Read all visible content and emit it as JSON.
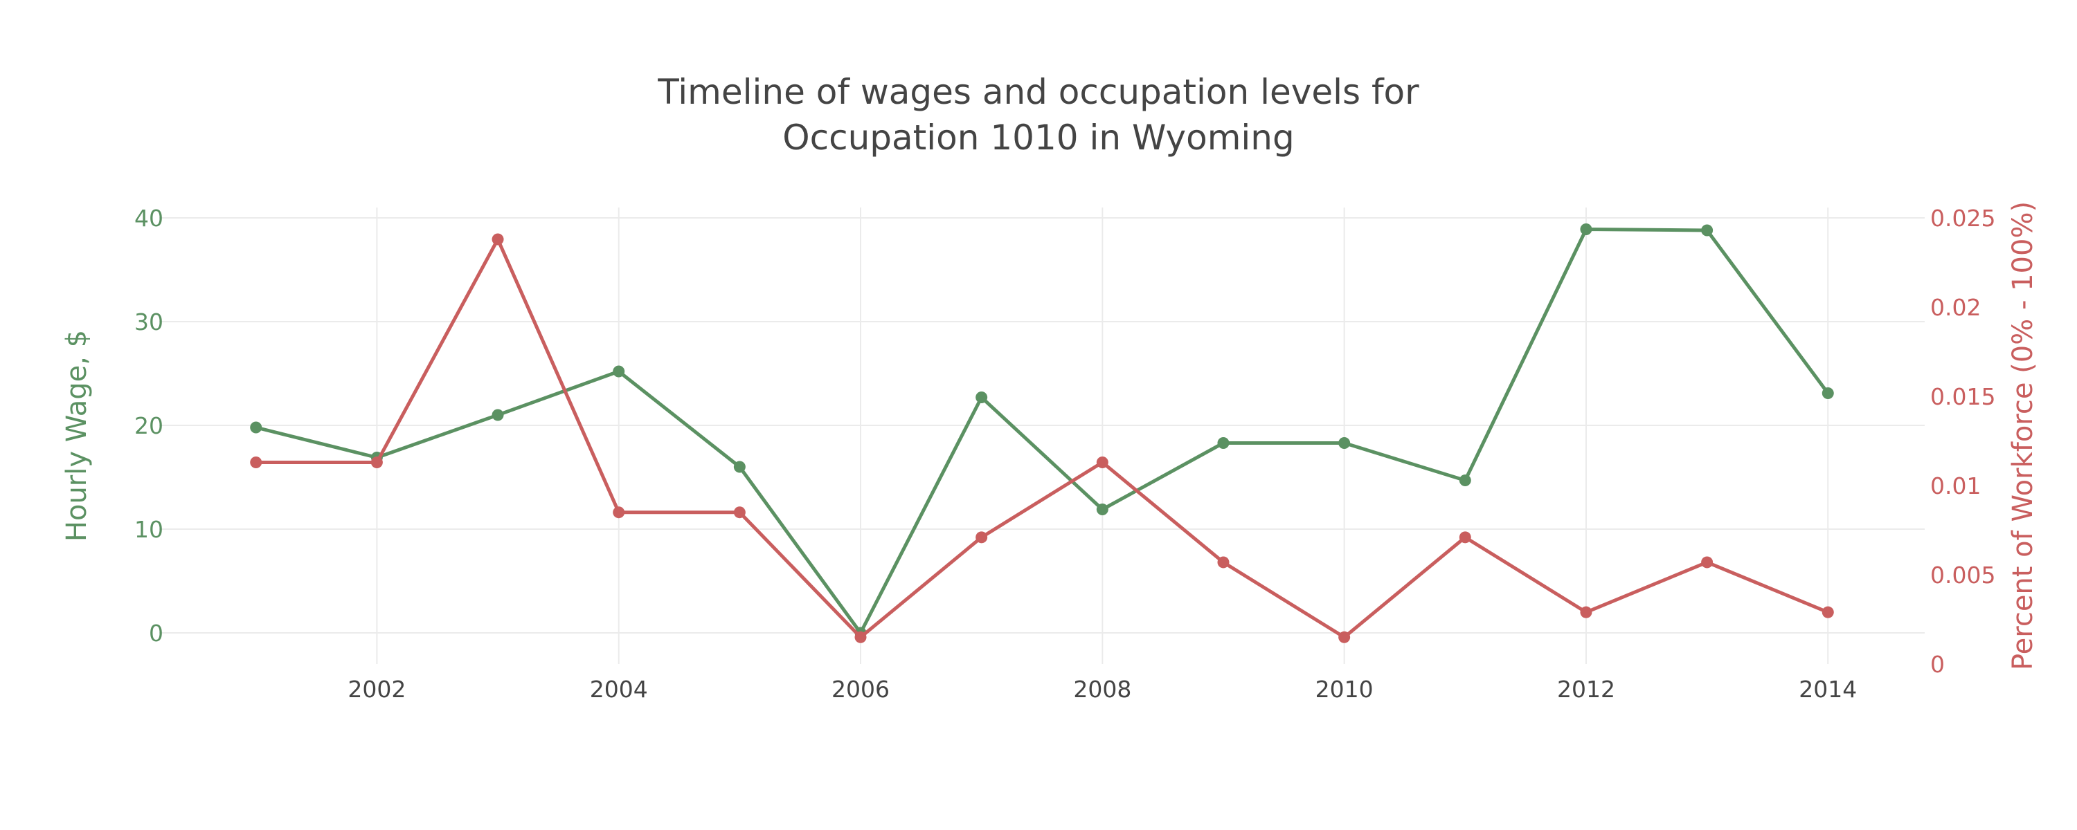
{
  "chart_data": {
    "type": "line",
    "title_lines": [
      "Timeline of wages and occupation levels for",
      "Occupation 1010 in Wyoming"
    ],
    "x": [
      2001,
      2002,
      2003,
      2004,
      2005,
      2006,
      2007,
      2008,
      2009,
      2010,
      2011,
      2012,
      2013,
      2014
    ],
    "xlim": [
      2000.2,
      2014.8
    ],
    "x_ticks": [
      2002,
      2004,
      2006,
      2008,
      2010,
      2012,
      2014
    ],
    "x_tick_labels": [
      "2002",
      "2004",
      "2006",
      "2008",
      "2010",
      "2012",
      "2014"
    ],
    "y_left": {
      "label": "Hourly Wage, $",
      "range": [
        -3,
        41
      ],
      "ticks": [
        0,
        10,
        20,
        30,
        40
      ],
      "tick_labels": [
        "0",
        "10",
        "20",
        "30",
        "40"
      ],
      "color": "#5b9162"
    },
    "y_right": {
      "label": "Percent of Workforce (0% - 100%)",
      "range": [
        0,
        0.025
      ],
      "ticks": [
        0,
        0.005,
        0.01,
        0.015,
        0.02,
        0.025
      ],
      "tick_labels": [
        "0",
        "0.005",
        "0.01",
        "0.015",
        "0.02",
        "0.025"
      ],
      "color": "#c95e5e"
    },
    "series": [
      {
        "axis": "left",
        "color": "#5b9162",
        "values": [
          19.8,
          16.9,
          21.0,
          25.2,
          16.0,
          0.0,
          22.7,
          11.9,
          18.3,
          18.3,
          14.7,
          38.9,
          38.8,
          23.1
        ]
      },
      {
        "axis": "right",
        "color": "#c95e5e",
        "values": [
          0.0113,
          0.0113,
          0.0238,
          0.0085,
          0.0085,
          0.0015,
          0.0071,
          0.0113,
          0.0057,
          0.0015,
          0.0071,
          0.0029,
          0.0057,
          0.0029
        ]
      }
    ],
    "grid": true,
    "legend": "none"
  }
}
